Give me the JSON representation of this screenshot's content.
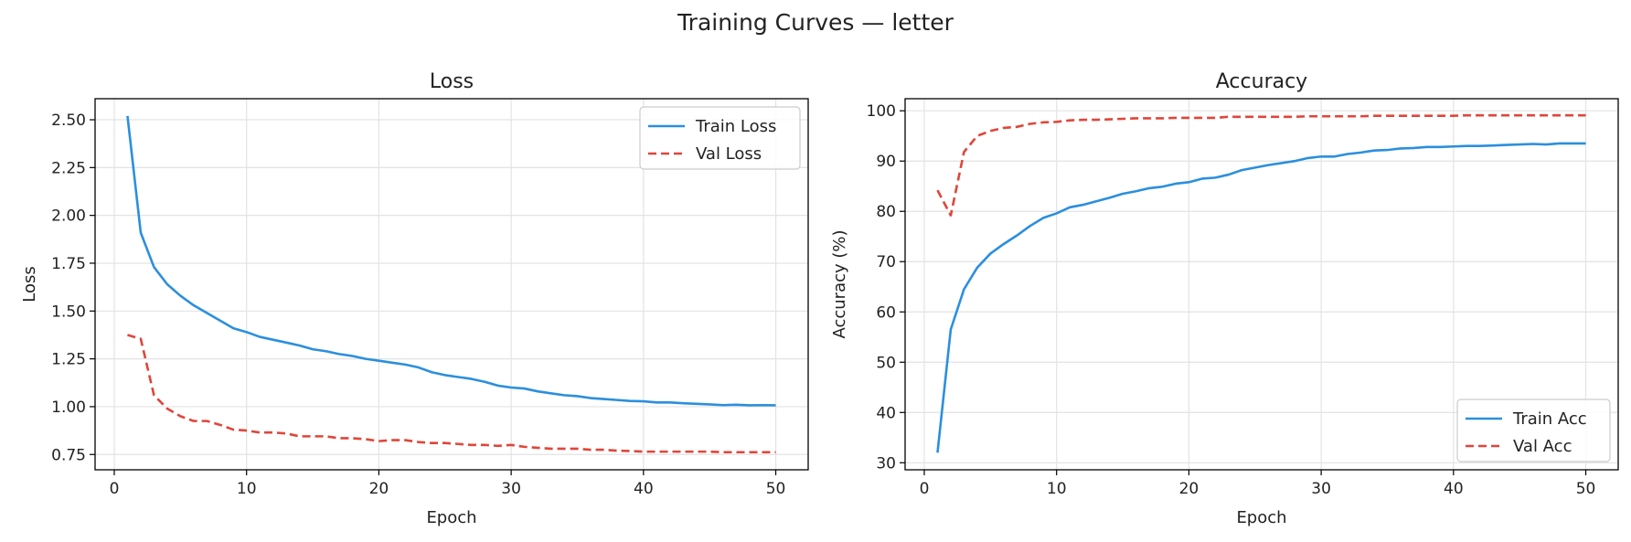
{
  "figure": {
    "suptitle": "Training Curves — letter"
  },
  "colors": {
    "train": "#2b8fde",
    "val": "#e0453a",
    "grid": "#e3e3e3",
    "axis": "#000000"
  },
  "chart_data": [
    {
      "type": "line",
      "title": "Loss",
      "xlabel": "Epoch",
      "ylabel": "Loss",
      "xlim": [
        -1.45,
        52.45
      ],
      "ylim": [
        0.67,
        2.61
      ],
      "xticks": [
        0,
        10,
        20,
        30,
        40,
        50
      ],
      "xtick_labels": [
        "0",
        "10",
        "20",
        "30",
        "40",
        "50"
      ],
      "yticks": [
        0.75,
        1.0,
        1.25,
        1.5,
        1.75,
        2.0,
        2.25,
        2.5
      ],
      "ytick_labels": [
        "0.75",
        "1.00",
        "1.25",
        "1.50",
        "1.75",
        "2.00",
        "2.25",
        "2.50"
      ],
      "grid": true,
      "legend": "top-right",
      "x": [
        1,
        2,
        3,
        4,
        5,
        6,
        7,
        8,
        9,
        10,
        11,
        12,
        13,
        14,
        15,
        16,
        17,
        18,
        19,
        20,
        21,
        22,
        23,
        24,
        25,
        26,
        27,
        28,
        29,
        30,
        31,
        32,
        33,
        34,
        35,
        36,
        37,
        38,
        39,
        40,
        41,
        42,
        43,
        44,
        45,
        46,
        47,
        48,
        49,
        50
      ],
      "series": [
        {
          "name": "Train Loss",
          "style": "solid",
          "color": "#2b8fde",
          "values": [
            2.52,
            1.91,
            1.73,
            1.64,
            1.58,
            1.53,
            1.49,
            1.45,
            1.41,
            1.39,
            1.365,
            1.35,
            1.335,
            1.32,
            1.3,
            1.29,
            1.275,
            1.265,
            1.25,
            1.24,
            1.23,
            1.22,
            1.205,
            1.18,
            1.165,
            1.155,
            1.145,
            1.13,
            1.11,
            1.1,
            1.095,
            1.08,
            1.07,
            1.06,
            1.055,
            1.045,
            1.04,
            1.035,
            1.03,
            1.028,
            1.022,
            1.022,
            1.018,
            1.015,
            1.012,
            1.008,
            1.01,
            1.007,
            1.008,
            1.007
          ]
        },
        {
          "name": "Val Loss",
          "style": "dashed",
          "color": "#e0453a",
          "values": [
            1.375,
            1.355,
            1.06,
            0.99,
            0.95,
            0.925,
            0.925,
            0.905,
            0.88,
            0.875,
            0.865,
            0.865,
            0.86,
            0.845,
            0.845,
            0.845,
            0.835,
            0.835,
            0.83,
            0.82,
            0.825,
            0.825,
            0.815,
            0.81,
            0.81,
            0.805,
            0.8,
            0.8,
            0.795,
            0.8,
            0.79,
            0.785,
            0.78,
            0.78,
            0.78,
            0.775,
            0.775,
            0.77,
            0.768,
            0.765,
            0.765,
            0.765,
            0.765,
            0.765,
            0.765,
            0.762,
            0.762,
            0.762,
            0.762,
            0.762
          ]
        }
      ]
    },
    {
      "type": "line",
      "title": "Accuracy",
      "xlabel": "Epoch",
      "ylabel": "Accuracy (%)",
      "xlim": [
        -1.45,
        52.45
      ],
      "ylim": [
        28.6,
        102.4
      ],
      "xticks": [
        0,
        10,
        20,
        30,
        40,
        50
      ],
      "xtick_labels": [
        "0",
        "10",
        "20",
        "30",
        "40",
        "50"
      ],
      "yticks": [
        30,
        40,
        50,
        60,
        70,
        80,
        90,
        100
      ],
      "ytick_labels": [
        "30",
        "40",
        "50",
        "60",
        "70",
        "80",
        "90",
        "100"
      ],
      "grid": true,
      "legend": "bottom-right",
      "x": [
        1,
        2,
        3,
        4,
        5,
        6,
        7,
        8,
        9,
        10,
        11,
        12,
        13,
        14,
        15,
        16,
        17,
        18,
        19,
        20,
        21,
        22,
        23,
        24,
        25,
        26,
        27,
        28,
        29,
        30,
        31,
        32,
        33,
        34,
        35,
        36,
        37,
        38,
        39,
        40,
        41,
        42,
        43,
        44,
        45,
        46,
        47,
        48,
        49,
        50
      ],
      "series": [
        {
          "name": "Train Acc",
          "style": "solid",
          "color": "#2b8fde",
          "values": [
            32.0,
            56.5,
            64.5,
            68.8,
            71.6,
            73.5,
            75.2,
            77.1,
            78.7,
            79.6,
            80.8,
            81.3,
            82.0,
            82.7,
            83.5,
            84.0,
            84.6,
            84.9,
            85.5,
            85.8,
            86.5,
            86.7,
            87.3,
            88.2,
            88.7,
            89.2,
            89.6,
            90.0,
            90.6,
            90.9,
            90.9,
            91.4,
            91.7,
            92.1,
            92.2,
            92.5,
            92.6,
            92.8,
            92.8,
            92.9,
            93.0,
            93.0,
            93.1,
            93.2,
            93.3,
            93.4,
            93.3,
            93.5,
            93.5,
            93.5
          ]
        },
        {
          "name": "Val Acc",
          "style": "dashed",
          "color": "#e0453a",
          "values": [
            84.2,
            79.2,
            91.8,
            95.0,
            96.0,
            96.6,
            96.8,
            97.4,
            97.7,
            97.8,
            98.1,
            98.2,
            98.2,
            98.3,
            98.4,
            98.5,
            98.5,
            98.5,
            98.6,
            98.6,
            98.6,
            98.6,
            98.8,
            98.8,
            98.8,
            98.8,
            98.8,
            98.8,
            98.9,
            98.9,
            98.9,
            98.9,
            98.9,
            99.0,
            99.0,
            99.0,
            99.0,
            99.0,
            99.0,
            99.0,
            99.1,
            99.1,
            99.1,
            99.1,
            99.1,
            99.1,
            99.1,
            99.1,
            99.1,
            99.1
          ]
        }
      ]
    }
  ]
}
